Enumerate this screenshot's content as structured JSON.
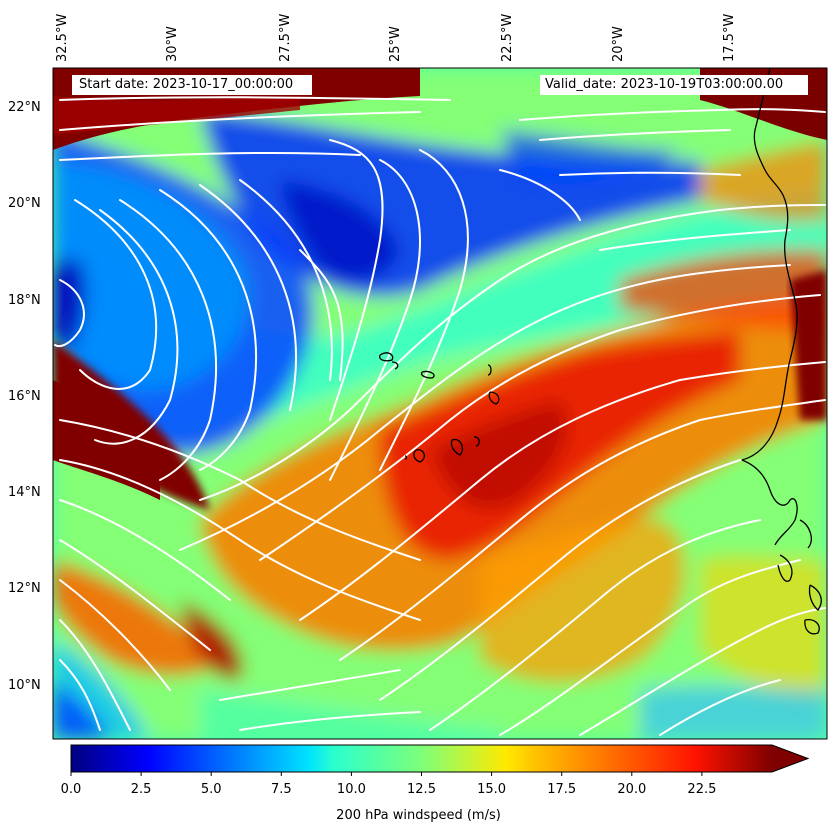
{
  "header": {
    "start_date": "Start date: 2023-10-17_00:00:00",
    "valid_date": "Valid_date: 2023-10-19T03:00:00.00"
  },
  "axes": {
    "lon_labels": [
      "32.5°W",
      "30°W",
      "27.5°W",
      "25°W",
      "22.5°W",
      "20°W",
      "17.5°W"
    ],
    "lon_values": [
      -32.5,
      -30,
      -27.5,
      -25,
      -22.5,
      -20,
      -17.5
    ],
    "lat_labels": [
      "22°N",
      "20°N",
      "18°N",
      "16°N",
      "14°N",
      "12°N",
      "10°N"
    ],
    "lat_values": [
      22,
      20,
      18,
      16,
      14,
      12,
      10
    ]
  },
  "map_extent": {
    "lon_min": -32.5,
    "lon_max": -15.0,
    "lat_min": 8.9,
    "lat_max": 22.8
  },
  "colorbar": {
    "title": "200 hPa windspeed (m/s)",
    "tick_labels": [
      "0.0",
      "2.5",
      "5.0",
      "7.5",
      "10.0",
      "12.5",
      "15.0",
      "17.5",
      "20.0",
      "22.5"
    ],
    "tick_values": [
      0,
      2.5,
      5,
      7.5,
      10,
      12.5,
      15,
      17.5,
      20,
      22.5
    ],
    "min": 0,
    "max": 25,
    "extend": "max",
    "colormap": "jet"
  },
  "colors": {
    "streamline": "#ffffff",
    "coastline": "#000000",
    "low_wind": "#0000a0",
    "high_wind": "#800000"
  }
}
